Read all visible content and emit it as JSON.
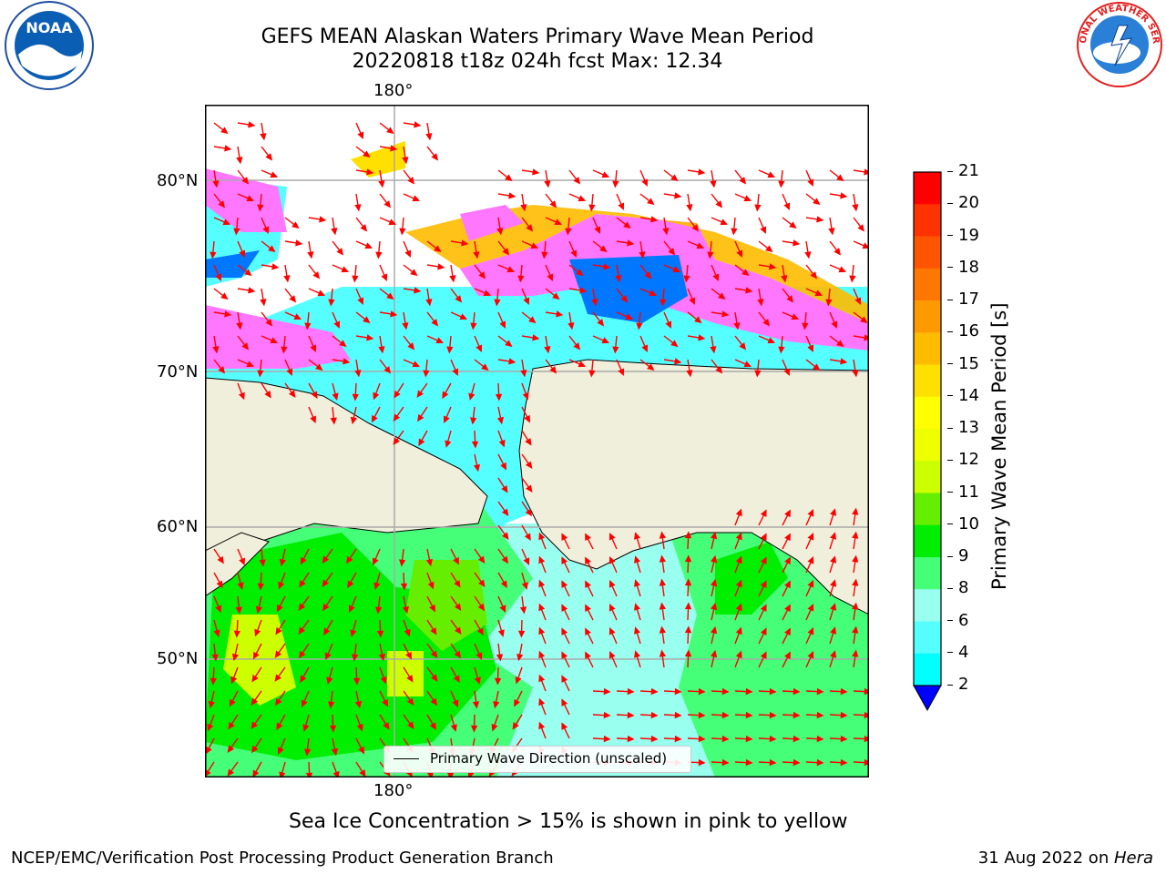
{
  "title_line1": "GEFS MEAN Alaskan Waters Primary Wave Mean Period",
  "title_line2": "20220818 t18z 024h fcst   Max: 12.34",
  "logos": {
    "left": "NOAA",
    "right": "NATIONAL WEATHER SERVICE"
  },
  "lon_top": "180°",
  "lon_bottom": "180°",
  "lat_labels": [
    "80°N",
    "70°N",
    "60°N",
    "50°N"
  ],
  "legend_label": "Primary Wave Direction (unscaled)",
  "colorbar": {
    "label": "Primary Wave Mean Period [s]",
    "ticks": [
      "21",
      "20",
      "19",
      "18",
      "17",
      "16",
      "15",
      "14",
      "13",
      "12",
      "11",
      "10",
      "9",
      "8",
      "6",
      "4",
      "2"
    ],
    "colors": [
      "#ff0000",
      "#ff3300",
      "#ff5500",
      "#ff7700",
      "#ff9900",
      "#ffbb00",
      "#ffe000",
      "#ffff00",
      "#eeff00",
      "#ccff00",
      "#66ee00",
      "#00ee00",
      "#44ff77",
      "#99ffee",
      "#55ffff",
      "#00ffff",
      "#0077ff"
    ],
    "below_color": "#0000ff"
  },
  "subtitle": "Sea Ice Concentration > 15% is shown in pink to yellow",
  "footer_left": "NCEP/EMC/Verification Post Processing Product Generation Branch",
  "footer_right_prefix": "31 Aug 2022 on ",
  "footer_right_italic": "Hera"
}
